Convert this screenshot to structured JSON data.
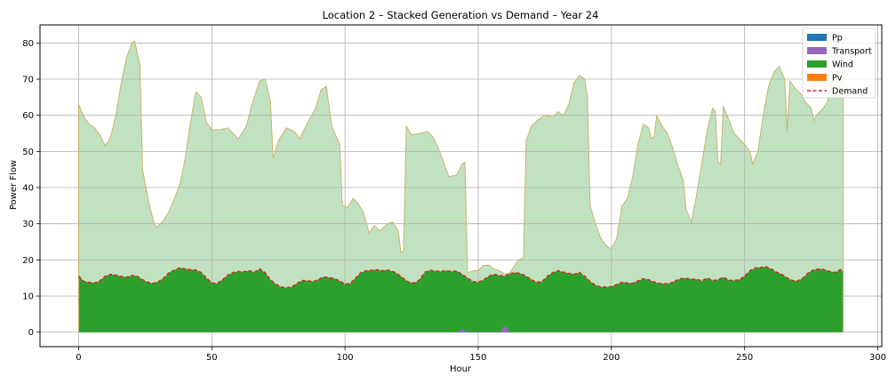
{
  "chart_data": {
    "type": "area",
    "title": "Location 2 – Stacked Generation vs Demand – Year 24",
    "xlabel": "Hour",
    "ylabel": "Power Flow",
    "xlim": [
      -14.5,
      301.5
    ],
    "ylim": [
      -4,
      85
    ],
    "xticks": [
      0,
      50,
      100,
      150,
      200,
      250,
      300
    ],
    "yticks": [
      0,
      10,
      20,
      30,
      40,
      50,
      60,
      70,
      80
    ],
    "grid": true,
    "legend_position": "top-right",
    "stacked_series": [
      {
        "name": "Pp",
        "color": "#1f77b4"
      },
      {
        "name": "Transport",
        "color": "#9467bd"
      },
      {
        "name": "Wind",
        "color": "#2ca02c"
      },
      {
        "name": "Pv",
        "color": "#ff7f0e"
      }
    ],
    "demand_series": {
      "name": "Demand",
      "color": "#d62728",
      "style": "dashed"
    },
    "excess_fill_color": "#c1e2c1",
    "excess_line_color": "#c8b46c",
    "transport_points": [
      [
        142,
        0
      ],
      [
        144,
        0.9
      ],
      [
        146,
        0
      ],
      [
        158,
        0
      ],
      [
        160,
        1.7
      ],
      [
        162,
        0
      ]
    ],
    "generation_points": [
      [
        0,
        63
      ],
      [
        2,
        59.5
      ],
      [
        4,
        57.5
      ],
      [
        6,
        56.5
      ],
      [
        8,
        54.5
      ],
      [
        10,
        51.5
      ],
      [
        12,
        54
      ],
      [
        14,
        60
      ],
      [
        16,
        69
      ],
      [
        18,
        76
      ],
      [
        20,
        80
      ],
      [
        21,
        80.5
      ],
      [
        23,
        74
      ],
      [
        24,
        45
      ],
      [
        26,
        37
      ],
      [
        28,
        31
      ],
      [
        29,
        29
      ],
      [
        30,
        29.5
      ],
      [
        32,
        31
      ],
      [
        34,
        33.5
      ],
      [
        36,
        37
      ],
      [
        38,
        41
      ],
      [
        40,
        48
      ],
      [
        42,
        58
      ],
      [
        44,
        66.5
      ],
      [
        46,
        65
      ],
      [
        48,
        58
      ],
      [
        50,
        56
      ],
      [
        53,
        56
      ],
      [
        56,
        56.5
      ],
      [
        58,
        55
      ],
      [
        60,
        53.5
      ],
      [
        63,
        57
      ],
      [
        65,
        63
      ],
      [
        68,
        69.5
      ],
      [
        70,
        70
      ],
      [
        72,
        64
      ],
      [
        73,
        48
      ],
      [
        75,
        53
      ],
      [
        78,
        56.5
      ],
      [
        81,
        55.5
      ],
      [
        83,
        53.5
      ],
      [
        86,
        58
      ],
      [
        89,
        62
      ],
      [
        91,
        67
      ],
      [
        93,
        68
      ],
      [
        95,
        57
      ],
      [
        98,
        52
      ],
      [
        99,
        35
      ],
      [
        101,
        34.5
      ],
      [
        103,
        37
      ],
      [
        105,
        35.5
      ],
      [
        107,
        33
      ],
      [
        109,
        27.5
      ],
      [
        111,
        29.5
      ],
      [
        113,
        28
      ],
      [
        116,
        30
      ],
      [
        118,
        30.5
      ],
      [
        120,
        28
      ],
      [
        121,
        22
      ],
      [
        122,
        22.5
      ],
      [
        123,
        57
      ],
      [
        125,
        54.5
      ],
      [
        128,
        55
      ],
      [
        131,
        55.5
      ],
      [
        133,
        54
      ],
      [
        135,
        51
      ],
      [
        137,
        47
      ],
      [
        139,
        43
      ],
      [
        142,
        43.5
      ],
      [
        144,
        46.5
      ],
      [
        145,
        47
      ],
      [
        146,
        16.5
      ],
      [
        148,
        17
      ],
      [
        150,
        17
      ],
      [
        152,
        18.5
      ],
      [
        154,
        18.5
      ],
      [
        156,
        17.5
      ],
      [
        158,
        17
      ],
      [
        160,
        16
      ],
      [
        162,
        16.5
      ],
      [
        165,
        20
      ],
      [
        167,
        20.5
      ],
      [
        168,
        53
      ],
      [
        170,
        57
      ],
      [
        172,
        58.5
      ],
      [
        175,
        60
      ],
      [
        178,
        59.5
      ],
      [
        180,
        61
      ],
      [
        182,
        60
      ],
      [
        184,
        63
      ],
      [
        186,
        69
      ],
      [
        188,
        71
      ],
      [
        190,
        70
      ],
      [
        191,
        65
      ],
      [
        192,
        35
      ],
      [
        194,
        30
      ],
      [
        196,
        26
      ],
      [
        198,
        24
      ],
      [
        200,
        23
      ],
      [
        202,
        26
      ],
      [
        204,
        35
      ],
      [
        206,
        37
      ],
      [
        208,
        43
      ],
      [
        210,
        52
      ],
      [
        212,
        57.5
      ],
      [
        214,
        56.5
      ],
      [
        215,
        53.5
      ],
      [
        216,
        54
      ],
      [
        217,
        60
      ],
      [
        219,
        57
      ],
      [
        221,
        55
      ],
      [
        223,
        51
      ],
      [
        225,
        46
      ],
      [
        227,
        42
      ],
      [
        228,
        34
      ],
      [
        230,
        30.5
      ],
      [
        232,
        38
      ],
      [
        234,
        47
      ],
      [
        236,
        56
      ],
      [
        238,
        62
      ],
      [
        239,
        61
      ],
      [
        240,
        47
      ],
      [
        241,
        46.5
      ],
      [
        242,
        62.5
      ],
      [
        244,
        59
      ],
      [
        246,
        55
      ],
      [
        248,
        53.5
      ],
      [
        250,
        52
      ],
      [
        252,
        50
      ],
      [
        253,
        46.5
      ],
      [
        255,
        50
      ],
      [
        257,
        60
      ],
      [
        259,
        68
      ],
      [
        261,
        72
      ],
      [
        263,
        73.5
      ],
      [
        265,
        70
      ],
      [
        266,
        55.5
      ],
      [
        267,
        69.5
      ],
      [
        269,
        67.5
      ],
      [
        271,
        66
      ],
      [
        273,
        63.5
      ],
      [
        275,
        62
      ],
      [
        276,
        58.5
      ],
      [
        277,
        60
      ],
      [
        279,
        61.5
      ],
      [
        281,
        63.5
      ],
      [
        283,
        69.5
      ],
      [
        285,
        73
      ],
      [
        287,
        78
      ]
    ],
    "demand_points": [
      [
        0,
        15.5
      ],
      [
        2,
        14
      ],
      [
        4,
        13.8
      ],
      [
        6,
        13.6
      ],
      [
        8,
        14.2
      ],
      [
        10,
        15.5
      ],
      [
        12,
        16
      ],
      [
        14,
        15.8
      ],
      [
        16,
        15.4
      ],
      [
        18,
        15.2
      ],
      [
        20,
        15.7
      ],
      [
        22,
        15.5
      ],
      [
        24,
        14.5
      ],
      [
        26,
        13.8
      ],
      [
        28,
        13.5
      ],
      [
        30,
        14
      ],
      [
        32,
        15
      ],
      [
        34,
        16.5
      ],
      [
        36,
        17.2
      ],
      [
        38,
        17.8
      ],
      [
        40,
        17.5
      ],
      [
        42,
        17.3
      ],
      [
        44,
        17.2
      ],
      [
        46,
        16.5
      ],
      [
        48,
        15
      ],
      [
        50,
        13.6
      ],
      [
        52,
        13.5
      ],
      [
        54,
        14.5
      ],
      [
        56,
        15.8
      ],
      [
        58,
        16.5
      ],
      [
        60,
        16.8
      ],
      [
        62,
        16.7
      ],
      [
        64,
        17
      ],
      [
        66,
        16.6
      ],
      [
        68,
        17.5
      ],
      [
        70,
        16.5
      ],
      [
        72,
        14.5
      ],
      [
        74,
        13.3
      ],
      [
        76,
        12.5
      ],
      [
        78,
        12.3
      ],
      [
        80,
        12.5
      ],
      [
        82,
        13.5
      ],
      [
        84,
        14.3
      ],
      [
        86,
        14.2
      ],
      [
        88,
        14
      ],
      [
        90,
        14.6
      ],
      [
        92,
        15.3
      ],
      [
        94,
        15.1
      ],
      [
        96,
        14.8
      ],
      [
        98,
        14.2
      ],
      [
        100,
        13.3
      ],
      [
        102,
        13.5
      ],
      [
        104,
        15
      ],
      [
        106,
        16.5
      ],
      [
        108,
        17
      ],
      [
        110,
        17.1
      ],
      [
        112,
        17.3
      ],
      [
        114,
        17
      ],
      [
        116,
        17.2
      ],
      [
        118,
        16.8
      ],
      [
        120,
        16
      ],
      [
        122,
        14.8
      ],
      [
        124,
        13.8
      ],
      [
        126,
        13.6
      ],
      [
        128,
        14.5
      ],
      [
        130,
        16.6
      ],
      [
        132,
        17.1
      ],
      [
        134,
        16.9
      ],
      [
        136,
        16.8
      ],
      [
        138,
        17
      ],
      [
        140,
        16.8
      ],
      [
        142,
        16.9
      ],
      [
        144,
        16
      ],
      [
        146,
        15
      ],
      [
        148,
        14
      ],
      [
        150,
        13.8
      ],
      [
        152,
        14.5
      ],
      [
        154,
        15.5
      ],
      [
        156,
        16
      ],
      [
        158,
        15.7
      ],
      [
        160,
        15.5
      ],
      [
        162,
        16.2
      ],
      [
        164,
        16.5
      ],
      [
        166,
        16.2
      ],
      [
        168,
        15.5
      ],
      [
        170,
        14.5
      ],
      [
        172,
        13.8
      ],
      [
        174,
        14
      ],
      [
        176,
        15.5
      ],
      [
        178,
        16.5
      ],
      [
        180,
        17
      ],
      [
        182,
        16.6
      ],
      [
        184,
        16.3
      ],
      [
        186,
        16
      ],
      [
        188,
        16.5
      ],
      [
        190,
        15.5
      ],
      [
        192,
        14
      ],
      [
        194,
        13
      ],
      [
        196,
        12.5
      ],
      [
        198,
        12.5
      ],
      [
        200,
        12.6
      ],
      [
        202,
        13.2
      ],
      [
        204,
        13.8
      ],
      [
        206,
        13.6
      ],
      [
        208,
        13.5
      ],
      [
        210,
        14.2
      ],
      [
        212,
        14.8
      ],
      [
        214,
        14.5
      ],
      [
        216,
        13.9
      ],
      [
        218,
        13.5
      ],
      [
        220,
        13.4
      ],
      [
        222,
        13.5
      ],
      [
        224,
        14.2
      ],
      [
        226,
        14.8
      ],
      [
        228,
        14.9
      ],
      [
        230,
        14.7
      ],
      [
        232,
        14.6
      ],
      [
        234,
        14.2
      ],
      [
        236,
        15
      ],
      [
        238,
        14.3
      ],
      [
        240,
        14.5
      ],
      [
        242,
        15.2
      ],
      [
        244,
        14.4
      ],
      [
        246,
        14.3
      ],
      [
        248,
        14.5
      ],
      [
        250,
        15.5
      ],
      [
        252,
        17
      ],
      [
        254,
        17.8
      ],
      [
        256,
        17.9
      ],
      [
        258,
        18.1
      ],
      [
        260,
        17.5
      ],
      [
        262,
        16.6
      ],
      [
        264,
        16
      ],
      [
        266,
        15
      ],
      [
        268,
        14.3
      ],
      [
        270,
        14.2
      ],
      [
        272,
        15
      ],
      [
        274,
        16.5
      ],
      [
        276,
        17.2
      ],
      [
        278,
        17.5
      ],
      [
        280,
        17.3
      ],
      [
        282,
        16.8
      ],
      [
        284,
        16.5
      ],
      [
        286,
        17.3
      ],
      [
        287,
        16.8
      ]
    ]
  }
}
